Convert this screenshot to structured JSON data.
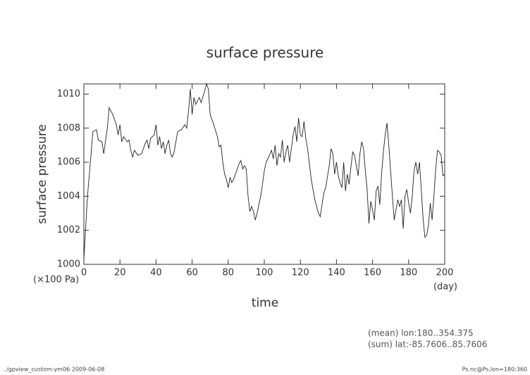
{
  "chart_data": {
    "type": "line",
    "title": "surface pressure",
    "x_label": "time",
    "y_label": "surface pressure",
    "y_unit": "(×100 Pa)",
    "x_unit": "(day)",
    "annotations": [
      "(mean) lon:180..354.375",
      "(sum) lat:-85.7606..85.7606"
    ],
    "footer_left": "../gpview_custom-ym06  2009-06-08",
    "footer_right": "Ps.nc@Ps,lon=180:360",
    "xlim": [
      0,
      200
    ],
    "xticks": [
      0,
      20,
      40,
      60,
      80,
      100,
      120,
      140,
      160,
      180,
      200
    ],
    "ylim": [
      1000,
      1010.6
    ],
    "yticks": [
      1000,
      1002,
      1004,
      1006,
      1008,
      1010
    ],
    "color": "#222222",
    "x": [
      0,
      2,
      4,
      5,
      7,
      8,
      10,
      11,
      13,
      14,
      16,
      18,
      19,
      20,
      21,
      22,
      24,
      25,
      26,
      27,
      28,
      30,
      32,
      34,
      35,
      36,
      37,
      39,
      40,
      41,
      42,
      43,
      44,
      45,
      46,
      47,
      48,
      49,
      50,
      52,
      54,
      56,
      57,
      58,
      59,
      60,
      61,
      62,
      64,
      65,
      67,
      68,
      69,
      70,
      72,
      74,
      75,
      76,
      77,
      78,
      79,
      80,
      81,
      82,
      83,
      85,
      86,
      87,
      88,
      89,
      90,
      91,
      92,
      93,
      94,
      95,
      96,
      98,
      99,
      100,
      101,
      102,
      104,
      105,
      106,
      107,
      108,
      109,
      110,
      111,
      112,
      113,
      114,
      115,
      116,
      117,
      118,
      119,
      120,
      121,
      122,
      123,
      124,
      126,
      128,
      130,
      131,
      132,
      133,
      134,
      136,
      137,
      138,
      139,
      140,
      141,
      142,
      143,
      144,
      145,
      146,
      147,
      148,
      149,
      150,
      152,
      153,
      154,
      155,
      156,
      157,
      158,
      159,
      160,
      161,
      162,
      163,
      164,
      165,
      166,
      167,
      168,
      169,
      170,
      171,
      172,
      173,
      174,
      175,
      176,
      177,
      178,
      179,
      180,
      181,
      182,
      183,
      184,
      185,
      186,
      187,
      188,
      189,
      190,
      191,
      192,
      193,
      194,
      195,
      196,
      197,
      198,
      199,
      200
    ],
    "values": [
      1000.3,
      1004,
      1006.5,
      1007.8,
      1007.9,
      1007.3,
      1007.2,
      1006.5,
      1008,
      1009.2,
      1008.8,
      1008.2,
      1007.6,
      1008.2,
      1007.2,
      1007.5,
      1007.2,
      1007.3,
      1006.7,
      1006.3,
      1006.7,
      1006.4,
      1006.5,
      1007.1,
      1007.3,
      1006.8,
      1007.4,
      1007.6,
      1008.2,
      1007,
      1007.5,
      1006.8,
      1007.2,
      1006.5,
      1007,
      1007.3,
      1006.5,
      1006.3,
      1006.6,
      1007.8,
      1007.9,
      1008.2,
      1008,
      1009,
      1010.3,
      1008.8,
      1009.8,
      1009.4,
      1009.8,
      1009.5,
      1010.2,
      1010.6,
      1010.3,
      1008.8,
      1008.2,
      1007.5,
      1006.9,
      1007,
      1006,
      1005.3,
      1005,
      1004.5,
      1005.1,
      1004.8,
      1005,
      1005.6,
      1005.9,
      1006.1,
      1005.6,
      1005.8,
      1005.6,
      1004,
      1003.1,
      1003.4,
      1003.1,
      1002.6,
      1003,
      1004,
      1004.7,
      1005.5,
      1006,
      1006.2,
      1006.7,
      1006.2,
      1007,
      1005.8,
      1006.5,
      1006.3,
      1007.3,
      1006,
      1006.6,
      1007,
      1006,
      1006.8,
      1007.6,
      1008.1,
      1007.2,
      1008.6,
      1007.6,
      1007.5,
      1008.4,
      1007.4,
      1006.8,
      1005,
      1003.8,
      1003,
      1002.8,
      1003.5,
      1004.2,
      1004.5,
      1005.8,
      1006.8,
      1006.5,
      1005.3,
      1006,
      1005.2,
      1004.8,
      1004.5,
      1006,
      1004.3,
      1005.3,
      1004.7,
      1005.7,
      1006.6,
      1006.4,
      1005.2,
      1006.5,
      1007.2,
      1006.8,
      1005.5,
      1004.4,
      1002.4,
      1003.7,
      1003.2,
      1002.6,
      1004.3,
      1004.6,
      1003.5,
      1005.3,
      1006.6,
      1007.6,
      1008.3,
      1007,
      1005.5,
      1004,
      1002.6,
      1003.2,
      1003.8,
      1003.4,
      1003.8,
      1002.1,
      1004,
      1004.4,
      1003.6,
      1003,
      1004,
      1005.5,
      1006,
      1005.3,
      1006,
      1004.4,
      1002.7,
      1001.6,
      1001.7,
      1002.3,
      1003.6,
      1002.6,
      1004,
      1005.6,
      1006.7,
      1006.6,
      1006.4,
      1005.2,
      1005.3
    ]
  }
}
